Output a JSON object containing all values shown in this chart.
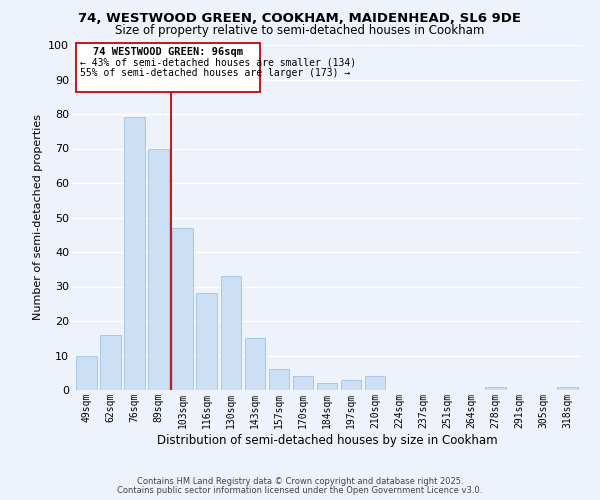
{
  "title_line1": "74, WESTWOOD GREEN, COOKHAM, MAIDENHEAD, SL6 9DE",
  "title_line2": "Size of property relative to semi-detached houses in Cookham",
  "xlabel": "Distribution of semi-detached houses by size in Cookham",
  "ylabel": "Number of semi-detached properties",
  "bar_labels": [
    "49sqm",
    "62sqm",
    "76sqm",
    "89sqm",
    "103sqm",
    "116sqm",
    "130sqm",
    "143sqm",
    "157sqm",
    "170sqm",
    "184sqm",
    "197sqm",
    "210sqm",
    "224sqm",
    "237sqm",
    "251sqm",
    "264sqm",
    "278sqm",
    "291sqm",
    "305sqm",
    "318sqm"
  ],
  "bar_values": [
    10,
    16,
    79,
    70,
    47,
    28,
    33,
    15,
    6,
    4,
    2,
    3,
    4,
    0,
    0,
    0,
    0,
    1,
    0,
    0,
    1
  ],
  "bar_color": "#cce0f5",
  "bar_edge_color": "#a0c4e8",
  "ylim": [
    0,
    100
  ],
  "yticks": [
    0,
    10,
    20,
    30,
    40,
    50,
    60,
    70,
    80,
    90,
    100
  ],
  "vline_color": "#cc0000",
  "annotation_title": "74 WESTWOOD GREEN: 96sqm",
  "annotation_line1": "← 43% of semi-detached houses are smaller (134)",
  "annotation_line2": "55% of semi-detached houses are larger (173) →",
  "annotation_box_color": "#cc0000",
  "footnote1": "Contains HM Land Registry data © Crown copyright and database right 2025.",
  "footnote2": "Contains public sector information licensed under the Open Government Licence v3.0.",
  "background_color": "#eef2fb",
  "grid_color": "#ffffff"
}
